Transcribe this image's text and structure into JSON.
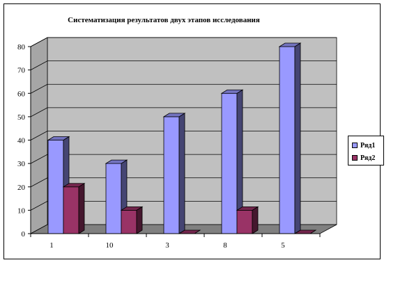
{
  "chart_data": {
    "type": "bar",
    "title": "Систематизация результатов двух этапов исследования",
    "categories": [
      "1",
      "10",
      "3",
      "8",
      "5"
    ],
    "series": [
      {
        "name": "Ряд1",
        "values": [
          40,
          30,
          50,
          60,
          80
        ],
        "color": "#9999ff"
      },
      {
        "name": "Ряд2",
        "values": [
          20,
          10,
          0,
          10,
          0
        ],
        "color": "#993366"
      }
    ],
    "ylim": [
      0,
      80
    ],
    "yticks": [
      "0",
      "10",
      "20",
      "30",
      "40",
      "50",
      "60",
      "70",
      "80"
    ],
    "grid": true,
    "legend": "right",
    "wall_color": "#c0c0c0",
    "floor_color": "#808080"
  }
}
